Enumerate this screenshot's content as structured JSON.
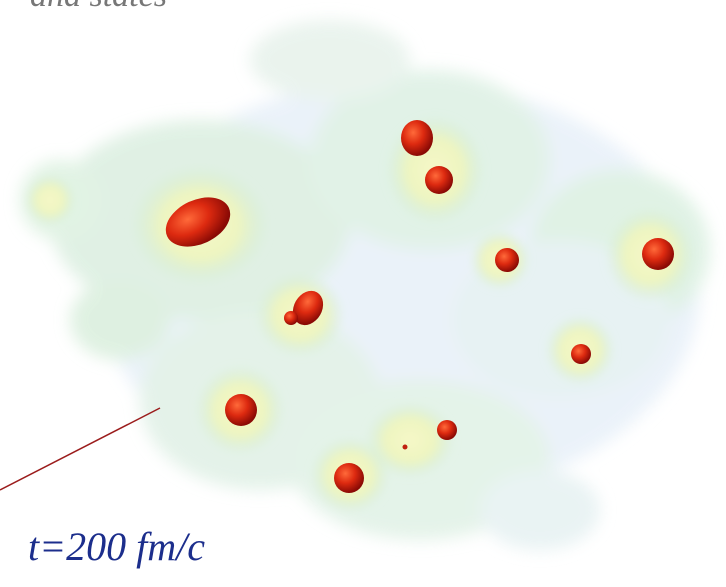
{
  "caption": "and states",
  "label": "t=200 fm/c"
}
